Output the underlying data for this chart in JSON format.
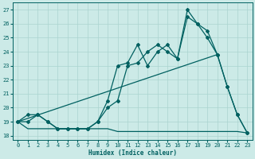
{
  "title": "",
  "xlabel": "Humidex (Indice chaleur)",
  "ylabel": "",
  "xlim": [
    -0.5,
    23.5
  ],
  "ylim": [
    17.7,
    27.5
  ],
  "yticks": [
    18,
    19,
    20,
    21,
    22,
    23,
    24,
    25,
    26,
    27
  ],
  "xticks": [
    0,
    1,
    2,
    3,
    4,
    5,
    6,
    7,
    8,
    9,
    10,
    11,
    12,
    13,
    14,
    15,
    16,
    17,
    18,
    19,
    20,
    21,
    22,
    23
  ],
  "bg_color": "#cceae7",
  "grid_color": "#aad4d0",
  "line_color": "#006060",
  "line1": {
    "x": [
      0,
      1,
      2,
      3,
      4,
      5,
      6,
      7,
      8,
      9,
      10,
      11,
      12,
      13,
      14,
      15,
      16,
      17,
      18,
      19,
      20,
      21,
      22,
      23
    ],
    "y": [
      19.0,
      19.5,
      19.5,
      19.0,
      18.5,
      18.5,
      18.5,
      18.5,
      19.0,
      20.5,
      23.0,
      23.2,
      24.5,
      23.0,
      24.0,
      24.5,
      23.5,
      27.0,
      26.0,
      25.0,
      23.8,
      21.5,
      19.5,
      18.2
    ]
  },
  "line2": {
    "x": [
      0,
      1,
      2,
      3,
      4,
      5,
      6,
      7,
      8,
      9,
      10,
      11,
      12,
      13,
      14,
      15,
      16,
      17,
      18,
      19,
      20,
      21,
      22,
      23
    ],
    "y": [
      19.0,
      19.0,
      19.5,
      19.0,
      18.5,
      18.5,
      18.5,
      18.5,
      19.0,
      20.0,
      20.5,
      23.0,
      23.2,
      24.0,
      24.5,
      24.0,
      23.5,
      26.5,
      26.0,
      25.5,
      23.8,
      21.5,
      19.5,
      18.2
    ]
  },
  "line_flat": {
    "x": [
      0,
      1,
      2,
      3,
      4,
      5,
      6,
      7,
      8,
      9,
      10,
      11,
      12,
      13,
      14,
      15,
      16,
      17,
      18,
      19,
      20,
      21,
      22,
      23
    ],
    "y": [
      19.0,
      18.5,
      18.5,
      18.5,
      18.5,
      18.5,
      18.5,
      18.5,
      18.5,
      18.5,
      18.3,
      18.3,
      18.3,
      18.3,
      18.3,
      18.3,
      18.3,
      18.3,
      18.3,
      18.3,
      18.3,
      18.3,
      18.3,
      18.2
    ]
  },
  "line_diag": {
    "x": [
      0,
      20
    ],
    "y": [
      19.0,
      23.8
    ]
  }
}
